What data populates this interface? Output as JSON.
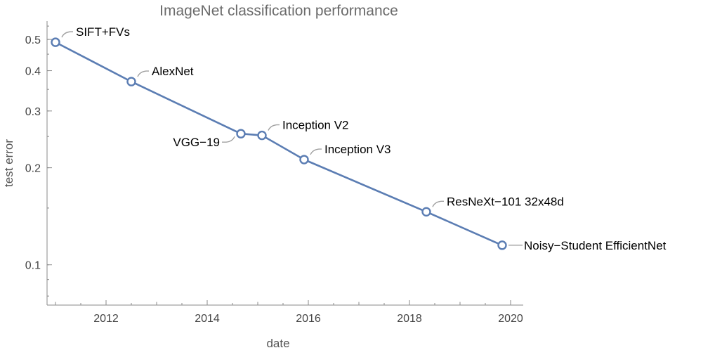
{
  "chart_data": {
    "type": "line",
    "title": "ImageNet classification performance",
    "xlabel": "date",
    "ylabel": "test error",
    "x_scale": "date",
    "y_scale": "log",
    "xlim": [
      "2010-11-01",
      "2020-04-01"
    ],
    "ylim": [
      0.075,
      0.57
    ],
    "x_major_ticks": [
      "2012",
      "2014",
      "2016",
      "2018",
      "2020"
    ],
    "y_major_ticks": [
      "0.1",
      "0.2",
      "0.3",
      "0.4",
      "0.5"
    ],
    "grid": false,
    "legend": "none",
    "colors": {
      "series": "#5b7db3"
    },
    "series": [
      {
        "points": [
          {
            "label": "SIFT+FVs",
            "x": "2011-01",
            "y": 0.49
          },
          {
            "label": "AlexNet",
            "x": "2012-07",
            "y": 0.37
          },
          {
            "label": "VGG−19",
            "x": "2014-09",
            "y": 0.255
          },
          {
            "label": "Inception V2",
            "x": "2015-02",
            "y": 0.252
          },
          {
            "label": "Inception V3",
            "x": "2015-12",
            "y": 0.212
          },
          {
            "label": "ResNeXt−101 32x48d",
            "x": "2018-05",
            "y": 0.146
          },
          {
            "label": "Noisy−Student EfficientNet",
            "x": "2019-11",
            "y": 0.115
          }
        ]
      }
    ]
  }
}
